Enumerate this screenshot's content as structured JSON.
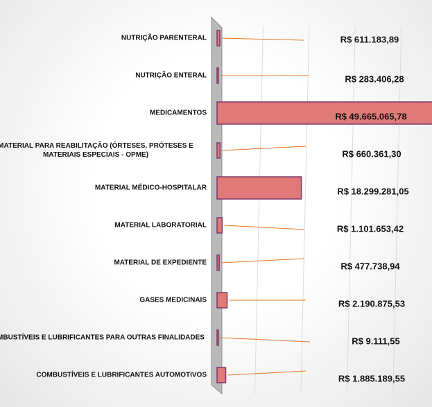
{
  "chart_data": {
    "type": "barh",
    "categories": [
      "NUTRIÇÃO PARENTERAL",
      "NUTRIÇÃO ENTERAL",
      "MEDICAMENTOS",
      "MATERIAL PARA REABILITAÇÃO (ÓRTESES, PRÓTESES E MATERIAIS ESPECIAIS - OPME)",
      "MATERIAL MÉDICO-HOSPITALAR",
      "MATERIAL LABORATORIAL",
      "MATERIAL DE EXPEDIENTE",
      "GASES MEDICINAIS",
      "COMBUSTÍVEIS E LUBRIFICANTES PARA OUTRAS FINALIDADES",
      "COMBUSTÍVEIS E LUBRIFICANTES AUTOMOTIVOS"
    ],
    "values": [
      611183.89,
      283406.28,
      49665065.78,
      660361.3,
      18299281.05,
      1101653.42,
      477738.94,
      2190875.53,
      9111.55,
      1885189.55
    ],
    "value_labels": [
      "R$ 611.183,89",
      "R$ 283.406,28",
      "R$ 49.665.065,78",
      "R$ 660.361,30",
      "R$ 18.299.281,05",
      "R$ 1.101.653,42",
      "R$ 477.738,94",
      "R$ 2.190.875,53",
      "R$ 9.111,55",
      "R$ 1.885.189,55"
    ],
    "color": "#e07a78",
    "xlim": [
      0,
      45000000
    ],
    "xticks": [
      0,
      10000000,
      20000000,
      30000000,
      40000000
    ],
    "grid": true
  }
}
